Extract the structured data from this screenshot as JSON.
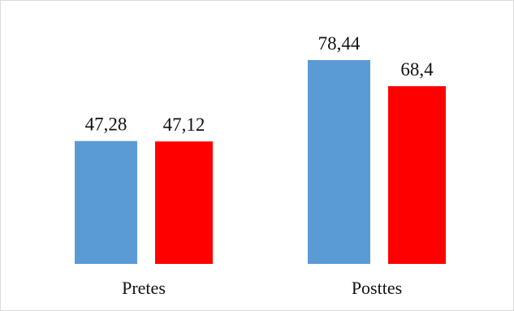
{
  "chart_data": {
    "type": "bar",
    "categories": [
      "Pretes",
      "Posttes"
    ],
    "series": [
      {
        "color": "#5b9bd5",
        "values": [
          47.28,
          78.44
        ]
      },
      {
        "color": "#ff0000",
        "values": [
          47.12,
          68.4
        ]
      }
    ],
    "data_labels": [
      [
        "47,28",
        "78,44"
      ],
      [
        "47,12",
        "68,4"
      ]
    ],
    "ylim": [
      0,
      80
    ],
    "title": "",
    "xlabel": "",
    "ylabel": "",
    "grid": false,
    "legend": "none"
  }
}
